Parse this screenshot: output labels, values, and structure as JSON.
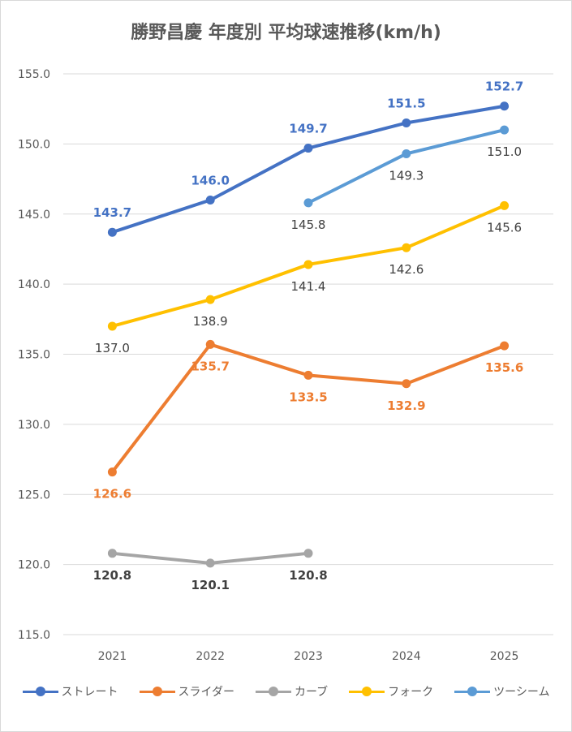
{
  "chart_data": {
    "type": "line",
    "title": "勝野昌慶 年度別 平均球速推移(km/h)",
    "categories": [
      "2021",
      "2022",
      "2023",
      "2024",
      "2025"
    ],
    "ylim": [
      115.0,
      155.0
    ],
    "ytick_step": 5,
    "yticks": [
      "155.0",
      "150.0",
      "145.0",
      "140.0",
      "135.0",
      "130.0",
      "125.0",
      "120.0",
      "115.0"
    ],
    "grid": true,
    "legend_position": "bottom",
    "series": [
      {
        "name": "ストレート",
        "color": "#4472c4",
        "values": [
          143.7,
          146.0,
          149.7,
          151.5,
          152.7
        ],
        "labels": [
          "143.7",
          "146.0",
          "149.7",
          "151.5",
          "152.7"
        ],
        "label_pos": "above",
        "label_bold": true
      },
      {
        "name": "スライダー",
        "color": "#ed7d31",
        "values": [
          126.6,
          135.7,
          133.5,
          132.9,
          135.6
        ],
        "labels": [
          "126.6",
          "135.7",
          "133.5",
          "132.9",
          "135.6"
        ],
        "label_pos": "below",
        "label_bold": true
      },
      {
        "name": "カーブ",
        "color": "#a5a5a5",
        "label_color": "#404040",
        "values": [
          120.8,
          120.1,
          120.8,
          null,
          null
        ],
        "labels": [
          "120.8",
          "120.1",
          "120.8",
          "",
          ""
        ],
        "label_pos": "below",
        "label_bold": true
      },
      {
        "name": "フォーク",
        "color": "#ffc000",
        "label_color": "#404040",
        "values": [
          137.0,
          138.9,
          141.4,
          142.6,
          145.6
        ],
        "labels": [
          "137.0",
          "138.9",
          "141.4",
          "142.6",
          "145.6"
        ],
        "label_pos": "below",
        "label_bold": false
      },
      {
        "name": "ツーシーム",
        "color": "#5b9bd5",
        "label_color": "#404040",
        "values": [
          null,
          null,
          145.8,
          149.3,
          151.0
        ],
        "labels": [
          "",
          "",
          "145.8",
          "149.3",
          "151.0"
        ],
        "label_pos": "below",
        "label_bold": false
      }
    ]
  }
}
